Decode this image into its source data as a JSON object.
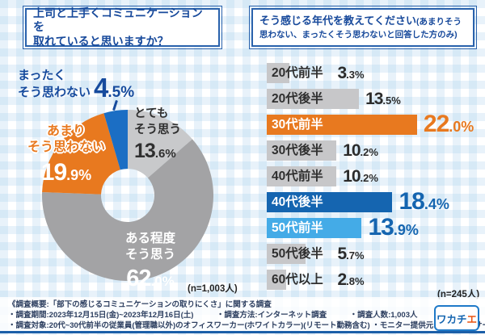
{
  "left_panel": {
    "title_line1": "上司と上手くコミュニケーションを",
    "title_line2": "取れていると思いますか？",
    "n_label": "(n=1,003人)"
  },
  "right_panel": {
    "title_main": "そう感じる年代を教えてください",
    "title_paren": "(あまりそう思わない、まったくそう思わないと回答した方のみ)",
    "n_label": "(n=245人)"
  },
  "donut_labels": {
    "not_at_all": {
      "line1": "まったく",
      "line2": "そう思わない"
    },
    "very": {
      "line1": "とても",
      "line2": "そう思う"
    },
    "not_really": {
      "line1": "あまり",
      "line2": "そう思わない"
    },
    "somewhat": {
      "line1": "ある程度",
      "line2": "そう思う"
    }
  },
  "chart_data": [
    {
      "type": "pie",
      "donut": true,
      "title": "上司と上手くコミュニケーションを取れていると思いますか？",
      "unit": "%",
      "n": "1,003",
      "start": "12-oclock, clockwise",
      "segments": [
        {
          "label": "とてもそう思う",
          "value": 13.6,
          "color": "#c8c9cb"
        },
        {
          "label": "ある程度そう思う",
          "value": 62.0,
          "color": "#a3a3a5"
        },
        {
          "label": "あまりそう思わない",
          "value": 19.9,
          "color": "#e8791f"
        },
        {
          "label": "まったくそう思わない",
          "value": 4.5,
          "color": "#1b6ec4"
        }
      ]
    },
    {
      "type": "bar",
      "orientation": "horizontal",
      "title": "そう感じる年代を教えてください(あまりそう思わない、まったくそう思わないと回答した方のみ)",
      "unit": "%",
      "n": "245",
      "categories": [
        "20代前半",
        "20代後半",
        "30代前半",
        "30代後半",
        "40代前半",
        "40代後半",
        "50代前半",
        "50代後半",
        "60代以上"
      ],
      "values": [
        3.3,
        13.5,
        22.0,
        10.2,
        10.2,
        18.4,
        13.9,
        5.7,
        2.8
      ],
      "default_style": {
        "bar": "#c7c7c9",
        "label": "#2f2f2f",
        "pct": "#2b2b2b"
      },
      "highlights": {
        "30代前半": {
          "bar": "#e8791f",
          "label": "#ffffff",
          "pct": "#e8791f"
        },
        "40代後半": {
          "bar": "#1565b0",
          "label": "#ffffff",
          "pct": "#1565b0"
        },
        "50代前半": {
          "bar": "#44abe7",
          "label": "#ffffff",
          "pct": "#1565b0"
        }
      }
    }
  ],
  "footer": {
    "line1": "《調査概要:「部下の感じるコミュニケーションの取りにくさ」に関する調査",
    "line2": "・調査期間:2023年12月15日(金)~2023年12月16日(土)　　　・調査方法:インターネット調査　　　・調査人数:1,003人",
    "line3": "・調査対象:20代~30代前半の従業員(管理職以外)のオフィスワーカー(ホワイトカラー)(リモート勤務含む) ・モニター提供元:ゼネラルリサーチ",
    "logo_blue": "ワカチ",
    "logo_orange": "エ"
  }
}
